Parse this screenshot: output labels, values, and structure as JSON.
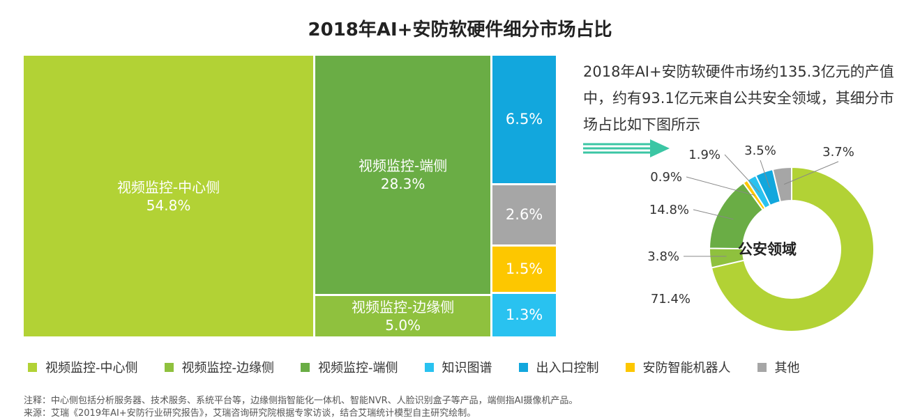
{
  "title": "2018年AI+安防软硬件细分市场占比",
  "description": "2018年AI+安防软硬件市场约135.3亿元的产值中，约有93.1亿元来自公共安全领域，其细分市场占比如下图所示",
  "colors": {
    "center": "#b2d235",
    "edge": "#8fc13e",
    "end": "#6aad45",
    "knowledge": "#29c2f0",
    "access": "#12a7dd",
    "robot": "#fdc700",
    "other": "#a6a6a6",
    "arrow": "#3bc6a4"
  },
  "chart_data": [
    {
      "type": "treemap",
      "title": "2018年AI+安防软硬件细分市场占比",
      "items": [
        {
          "key": "center",
          "name": "视频监控-中心侧",
          "value": 54.8,
          "label": "视频监控-中心侧",
          "pct": "54.8%"
        },
        {
          "key": "end",
          "name": "视频监控-端侧",
          "value": 28.3,
          "label": "视频监控-端侧",
          "pct": "28.3%"
        },
        {
          "key": "edge",
          "name": "视频监控-边缘侧",
          "value": 5.0,
          "label": "视频监控-边缘侧",
          "pct": "5.0%"
        },
        {
          "key": "access",
          "name": "出入口控制",
          "value": 6.5,
          "label": "",
          "pct": "6.5%"
        },
        {
          "key": "other",
          "name": "其他",
          "value": 2.6,
          "label": "",
          "pct": "2.6%"
        },
        {
          "key": "robot",
          "name": "安防智能机器人",
          "value": 1.5,
          "label": "",
          "pct": "1.5%"
        },
        {
          "key": "knowledge",
          "name": "知识图谱",
          "value": 1.3,
          "label": "",
          "pct": "1.3%"
        }
      ]
    },
    {
      "type": "pie",
      "donut": true,
      "center_label": "公安领域",
      "slices": [
        {
          "key": "center",
          "name": "视频监控-中心侧",
          "value": 71.4,
          "label": "71.4%"
        },
        {
          "key": "edge",
          "name": "视频监控-边缘侧",
          "value": 3.8,
          "label": "3.8%"
        },
        {
          "key": "end",
          "name": "视频监控-端侧",
          "value": 14.8,
          "label": "14.8%"
        },
        {
          "key": "robot",
          "name": "安防智能机器人",
          "value": 0.9,
          "label": "0.9%"
        },
        {
          "key": "knowledge",
          "name": "知识图谱",
          "value": 1.9,
          "label": "1.9%"
        },
        {
          "key": "access",
          "name": "出入口控制",
          "value": 3.5,
          "label": "3.5%"
        },
        {
          "key": "other",
          "name": "其他",
          "value": 3.7,
          "label": "3.7%"
        }
      ]
    }
  ],
  "legend": [
    {
      "key": "center",
      "label": "视频监控-中心侧"
    },
    {
      "key": "edge",
      "label": "视频监控-边缘侧"
    },
    {
      "key": "end",
      "label": "视频监控-端侧"
    },
    {
      "key": "knowledge",
      "label": "知识图谱"
    },
    {
      "key": "access",
      "label": "出入口控制"
    },
    {
      "key": "robot",
      "label": "安防智能机器人"
    },
    {
      "key": "other",
      "label": "其他"
    }
  ],
  "notes": {
    "note": "注释：中心侧包括分析服务器、技术服务、系统平台等，边缘侧指智能化一体机、智能NVR、人脸识别盒子等产品，端侧指AI摄像机产品。",
    "source": "来源：艾瑞《2019年AI+安防行业研究报告》，艾瑞咨询研究院根据专家访谈，结合艾瑞统计模型自主研究绘制。"
  }
}
